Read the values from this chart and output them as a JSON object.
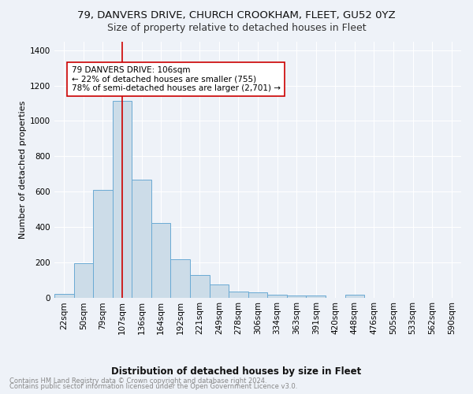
{
  "title1": "79, DANVERS DRIVE, CHURCH CROOKHAM, FLEET, GU52 0YZ",
  "title2": "Size of property relative to detached houses in Fleet",
  "xlabel": "Distribution of detached houses by size in Fleet",
  "ylabel": "Number of detached properties",
  "bin_labels": [
    "22sqm",
    "50sqm",
    "79sqm",
    "107sqm",
    "136sqm",
    "164sqm",
    "192sqm",
    "221sqm",
    "249sqm",
    "278sqm",
    "306sqm",
    "334sqm",
    "363sqm",
    "391sqm",
    "420sqm",
    "448sqm",
    "476sqm",
    "505sqm",
    "533sqm",
    "562sqm",
    "590sqm"
  ],
  "bar_values": [
    20,
    195,
    610,
    1115,
    665,
    420,
    215,
    128,
    72,
    33,
    27,
    15,
    12,
    10,
    0,
    14,
    0,
    0,
    0,
    0,
    0
  ],
  "bar_color": "#ccdce8",
  "bar_edge_color": "#6aaad4",
  "vline_x": 3.0,
  "vline_color": "#cc0000",
  "annotation_text": "79 DANVERS DRIVE: 106sqm\n← 22% of detached houses are smaller (755)\n78% of semi-detached houses are larger (2,701) →",
  "annotation_box_color": "#ffffff",
  "annotation_box_edge": "#cc0000",
  "ylim": [
    0,
    1450
  ],
  "yticks": [
    0,
    200,
    400,
    600,
    800,
    1000,
    1200,
    1400
  ],
  "footer1": "Contains HM Land Registry data © Crown copyright and database right 2024.",
  "footer2": "Contains public sector information licensed under the Open Government Licence v3.0.",
  "bg_color": "#eef2f8",
  "grid_color": "#ffffff",
  "title1_fontsize": 9.5,
  "title2_fontsize": 9,
  "xlabel_fontsize": 8.5,
  "ylabel_fontsize": 8,
  "tick_fontsize": 7.5,
  "footer_fontsize": 6,
  "annot_fontsize": 7.5
}
